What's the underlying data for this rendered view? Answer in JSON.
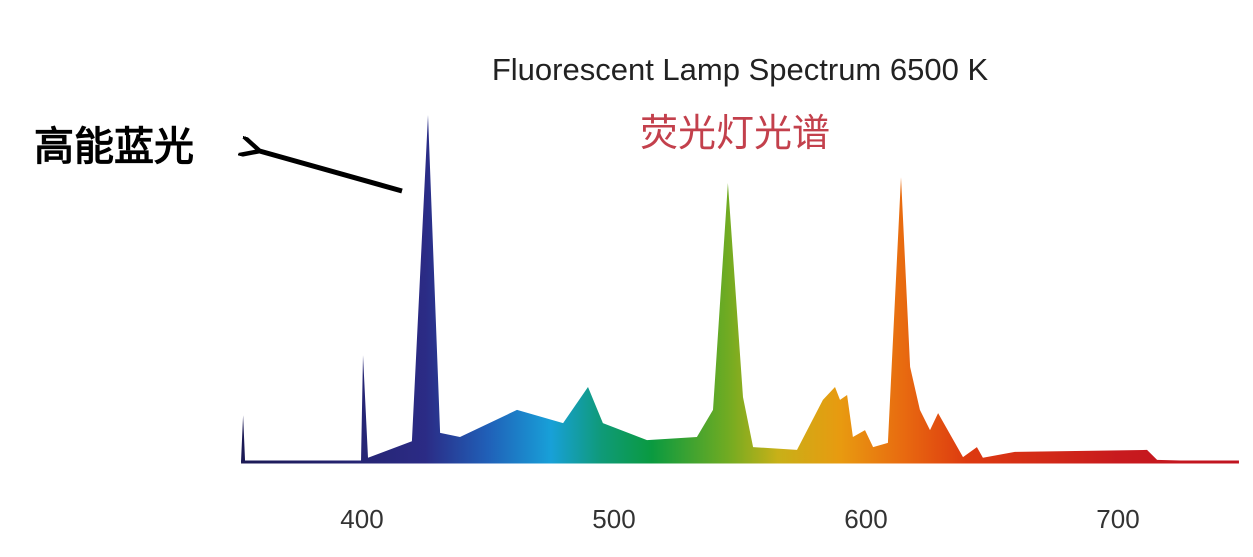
{
  "chart_data": {
    "type": "area",
    "title": "Fluorescent Lamp Spectrum 6500 K",
    "subtitle": "荧光灯光谱",
    "xlabel": "",
    "ylabel": "",
    "xlim": [
      352,
      748
    ],
    "ylim": [
      0,
      1
    ],
    "x_ticks": [
      400,
      500,
      600,
      700
    ],
    "grid": false,
    "fill": "spectral gradient by wavelength",
    "annotation": {
      "text": "高能蓝光",
      "points_to_x": 426
    },
    "series": [
      {
        "points": [
          [
            352,
            0
          ],
          [
            352.8,
            0.135
          ],
          [
            353.6,
            0
          ],
          [
            399.6,
            0
          ],
          [
            400.4,
            0.308
          ],
          [
            402.4,
            0.012
          ],
          [
            419.8,
            0.06
          ],
          [
            426.2,
            1.0
          ],
          [
            431,
            0.084
          ],
          [
            438.9,
            0.072
          ],
          [
            461.5,
            0.15
          ],
          [
            479.8,
            0.112
          ],
          [
            489.7,
            0.216
          ],
          [
            495.6,
            0.112
          ],
          [
            513.1,
            0.063
          ],
          [
            532.9,
            0.072
          ],
          [
            539.3,
            0.15
          ],
          [
            545.2,
            0.804
          ],
          [
            551.2,
            0.187
          ],
          [
            555.2,
            0.043
          ],
          [
            572.6,
            0.035
          ],
          [
            582.9,
            0.179
          ],
          [
            587.7,
            0.216
          ],
          [
            589.7,
            0.179
          ],
          [
            592.5,
            0.193
          ],
          [
            594.8,
            0.072
          ],
          [
            599.6,
            0.092
          ],
          [
            602.8,
            0.043
          ],
          [
            608.7,
            0.055
          ],
          [
            613.9,
            0.821
          ],
          [
            617.5,
            0.274
          ],
          [
            621.4,
            0.15
          ],
          [
            625.4,
            0.092
          ],
          [
            628.6,
            0.141
          ],
          [
            638.5,
            0.014
          ],
          [
            644,
            0.043
          ],
          [
            646.4,
            0.012
          ],
          [
            659.1,
            0.029
          ],
          [
            711.5,
            0.035
          ],
          [
            715.5,
            0.006
          ],
          [
            747.2,
            0
          ]
        ]
      }
    ],
    "colors": {
      "352": "#1c1a55",
      "425": "#2b2b85",
      "450": "#2060b8",
      "475": "#18a0d8",
      "495": "#0f9a78",
      "515": "#0a9a40",
      "545": "#70ab22",
      "565": "#c8b018",
      "590": "#e89a10",
      "615": "#e86a10",
      "640": "#dd3a10",
      "700": "#c81a1e",
      "748": "#c01420"
    }
  }
}
